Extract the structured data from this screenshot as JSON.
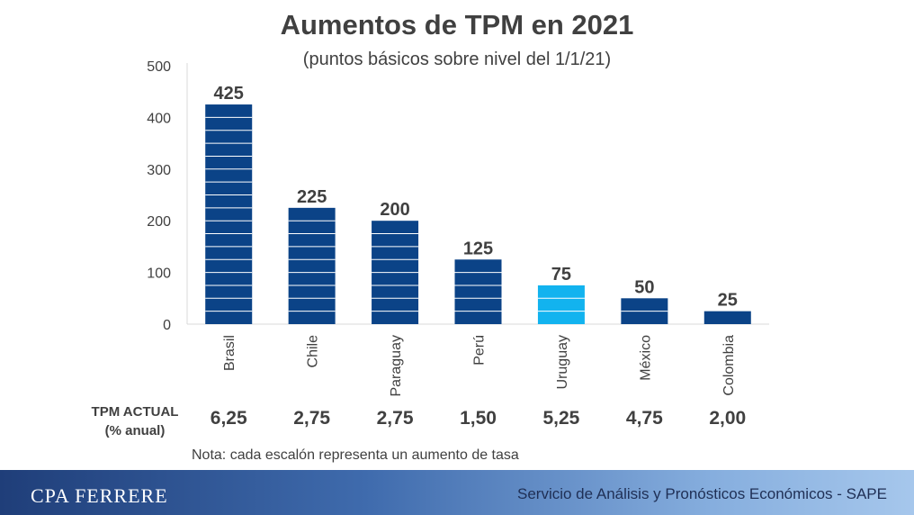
{
  "chart_data": {
    "type": "bar",
    "title": "Aumentos de TPM en 2021",
    "subtitle": "(puntos básicos sobre nivel del 1/1/21)",
    "categories": [
      "Brasil",
      "Chile",
      "Paraguay",
      "Perú",
      "Uruguay",
      "México",
      "Colombia"
    ],
    "values": [
      425,
      225,
      200,
      125,
      75,
      50,
      25
    ],
    "ylim": [
      0,
      500
    ],
    "yticks": [
      "0",
      "100",
      "200",
      "300",
      "400",
      "500"
    ],
    "step_size": 25,
    "colors": {
      "default": "#0b4387",
      "highlight": "#12b3ef",
      "highlight_category": "Uruguay",
      "axis_text": "#404040"
    }
  },
  "tpm": {
    "label_line1": "TPM ACTUAL",
    "label_line2": "(% anual)",
    "values": [
      "6,25",
      "2,75",
      "2,75",
      "1,50",
      "5,25",
      "4,75",
      "2,00"
    ]
  },
  "note": "Nota: cada escalón representa un aumento de tasa",
  "footer": {
    "brand": "CPA FERRERE",
    "service": "Servicio de Análisis y Pronósticos Económicos - SAPE"
  }
}
